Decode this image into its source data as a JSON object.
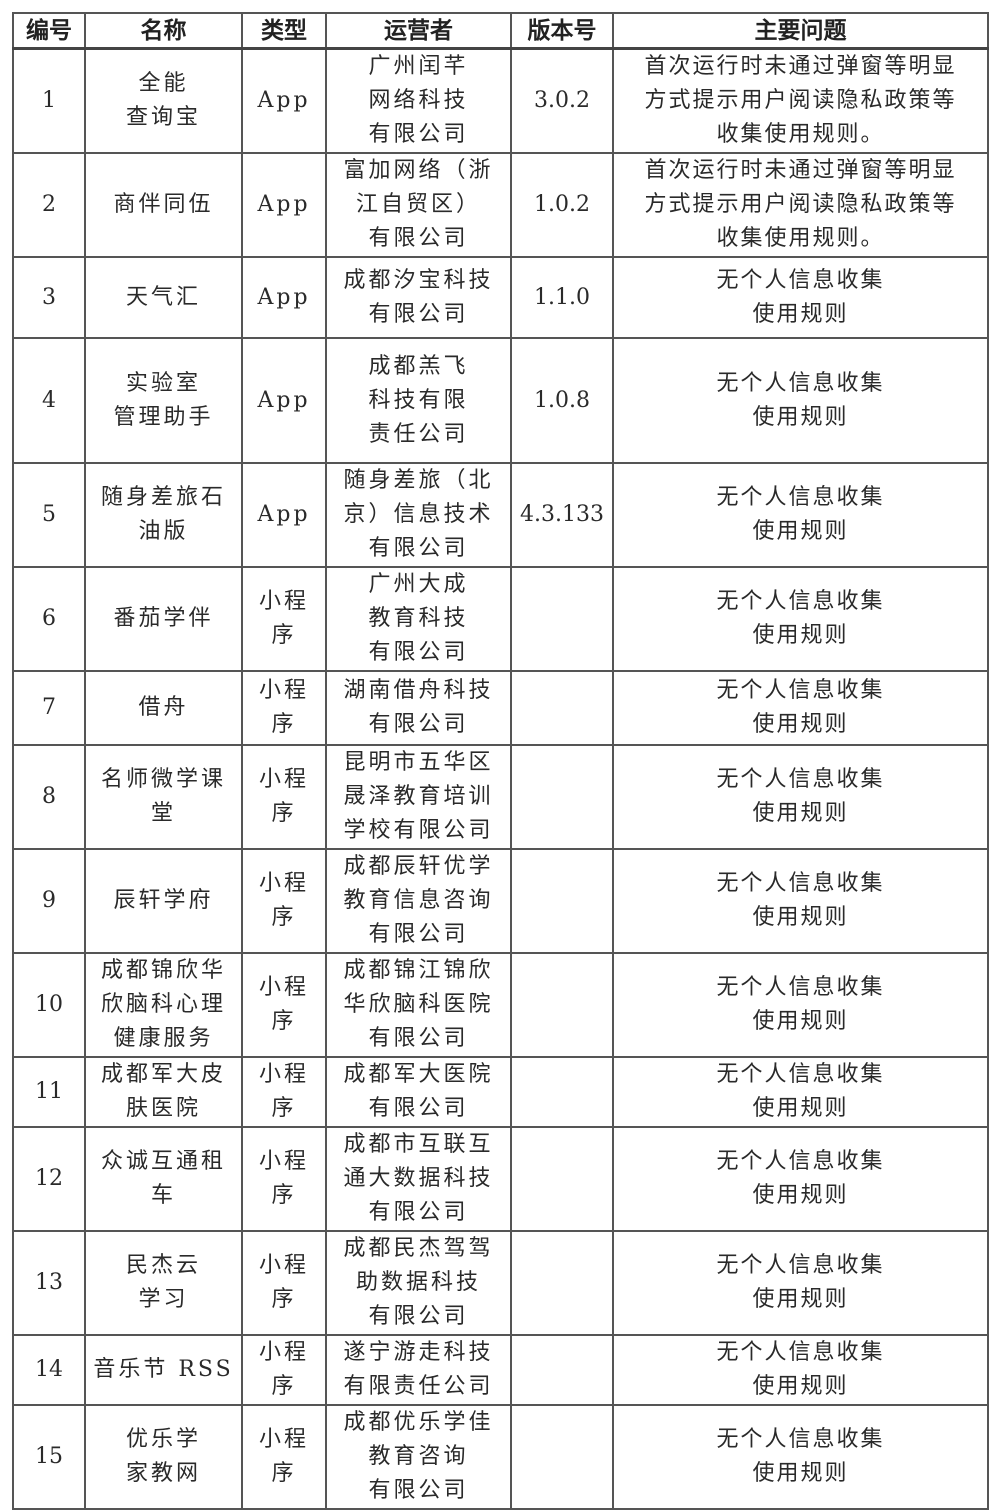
{
  "table": {
    "headers": [
      "编号",
      "名称",
      "类型",
      "运营者",
      "版本号",
      "主要问题"
    ],
    "rows": [
      {
        "no": "1",
        "name": [
          "全能",
          "查询宝"
        ],
        "type": [
          "App"
        ],
        "operator": [
          "广州闰芊",
          "网络科技",
          "有限公司"
        ],
        "version": "3.0.2",
        "issue": [
          "首次运行时未通过弹窗等明显",
          "方式提示用户阅读隐私政策等",
          "收集使用规则。"
        ]
      },
      {
        "no": "2",
        "name": [
          "商伴同伍"
        ],
        "type": [
          "App"
        ],
        "operator": [
          "富加网络（浙",
          "江自贸区）",
          "有限公司"
        ],
        "version": "1.0.2",
        "issue": [
          "首次运行时未通过弹窗等明显",
          "方式提示用户阅读隐私政策等",
          "收集使用规则。"
        ]
      },
      {
        "no": "3",
        "name": [
          "天气汇"
        ],
        "type": [
          "App"
        ],
        "operator": [
          "成都汐宝科技",
          "有限公司"
        ],
        "version": "1.1.0",
        "issue": [
          "无个人信息收集",
          "使用规则"
        ]
      },
      {
        "no": "4",
        "name": [
          "实验室",
          "管理助手"
        ],
        "type": [
          "App"
        ],
        "operator": [
          "成都羔飞",
          "科技有限",
          "责任公司"
        ],
        "version": "1.0.8",
        "issue": [
          "无个人信息收集",
          "使用规则"
        ]
      },
      {
        "no": "5",
        "name": [
          "随身差旅石",
          "油版"
        ],
        "type": [
          "App"
        ],
        "operator": [
          "随身差旅（北",
          "京）信息技术",
          "有限公司"
        ],
        "version": "4.3.133",
        "issue": [
          "无个人信息收集",
          "使用规则"
        ]
      },
      {
        "no": "6",
        "name": [
          "番茄学伴"
        ],
        "type": [
          "小程",
          "序"
        ],
        "operator": [
          "广州大成",
          "教育科技",
          "有限公司"
        ],
        "version": "",
        "issue": [
          "无个人信息收集",
          "使用规则"
        ]
      },
      {
        "no": "7",
        "name": [
          "借舟"
        ],
        "type": [
          "小程",
          "序"
        ],
        "operator": [
          "湖南借舟科技",
          "有限公司"
        ],
        "version": "",
        "issue": [
          "无个人信息收集",
          "使用规则"
        ]
      },
      {
        "no": "8",
        "name": [
          "名师微学课",
          "堂"
        ],
        "type": [
          "小程",
          "序"
        ],
        "operator": [
          "昆明市五华区",
          "晟泽教育培训",
          "学校有限公司"
        ],
        "version": "",
        "issue": [
          "无个人信息收集",
          "使用规则"
        ]
      },
      {
        "no": "9",
        "name": [
          "辰轩学府"
        ],
        "type": [
          "小程",
          "序"
        ],
        "operator": [
          "成都辰轩优学",
          "教育信息咨询",
          "有限公司"
        ],
        "version": "",
        "issue": [
          "无个人信息收集",
          "使用规则"
        ]
      },
      {
        "no": "10",
        "name": [
          "成都锦欣华",
          "欣脑科心理",
          "健康服务"
        ],
        "type": [
          "小程",
          "序"
        ],
        "operator": [
          "成都锦江锦欣",
          "华欣脑科医院",
          "有限公司"
        ],
        "version": "",
        "issue": [
          "无个人信息收集",
          "使用规则"
        ]
      },
      {
        "no": "11",
        "name": [
          "成都军大皮",
          "肤医院"
        ],
        "type": [
          "小程",
          "序"
        ],
        "operator": [
          "成都军大医院",
          "有限公司"
        ],
        "version": "",
        "issue": [
          "无个人信息收集",
          "使用规则"
        ]
      },
      {
        "no": "12",
        "name": [
          "众诚互通租",
          "车"
        ],
        "type": [
          "小程",
          "序"
        ],
        "operator": [
          "成都市互联互",
          "通大数据科技",
          "有限公司"
        ],
        "version": "",
        "issue": [
          "无个人信息收集",
          "使用规则"
        ]
      },
      {
        "no": "13",
        "name": [
          "民杰云",
          "学习"
        ],
        "type": [
          "小程",
          "序"
        ],
        "operator": [
          "成都民杰驾驾",
          "助数据科技",
          "有限公司"
        ],
        "version": "",
        "issue": [
          "无个人信息收集",
          "使用规则"
        ]
      },
      {
        "no": "14",
        "name": [
          "音乐节 RSS"
        ],
        "type": [
          "小程",
          "序"
        ],
        "operator": [
          "遂宁游走科技",
          "有限责任公司"
        ],
        "version": "",
        "issue": [
          "无个人信息收集",
          "使用规则"
        ]
      },
      {
        "no": "15",
        "name": [
          "优乐学",
          "家教网"
        ],
        "type": [
          "小程",
          "序"
        ],
        "operator": [
          "成都优乐学佳",
          "教育咨询",
          "有限公司"
        ],
        "version": "",
        "issue": [
          "无个人信息收集",
          "使用规则"
        ]
      }
    ]
  }
}
